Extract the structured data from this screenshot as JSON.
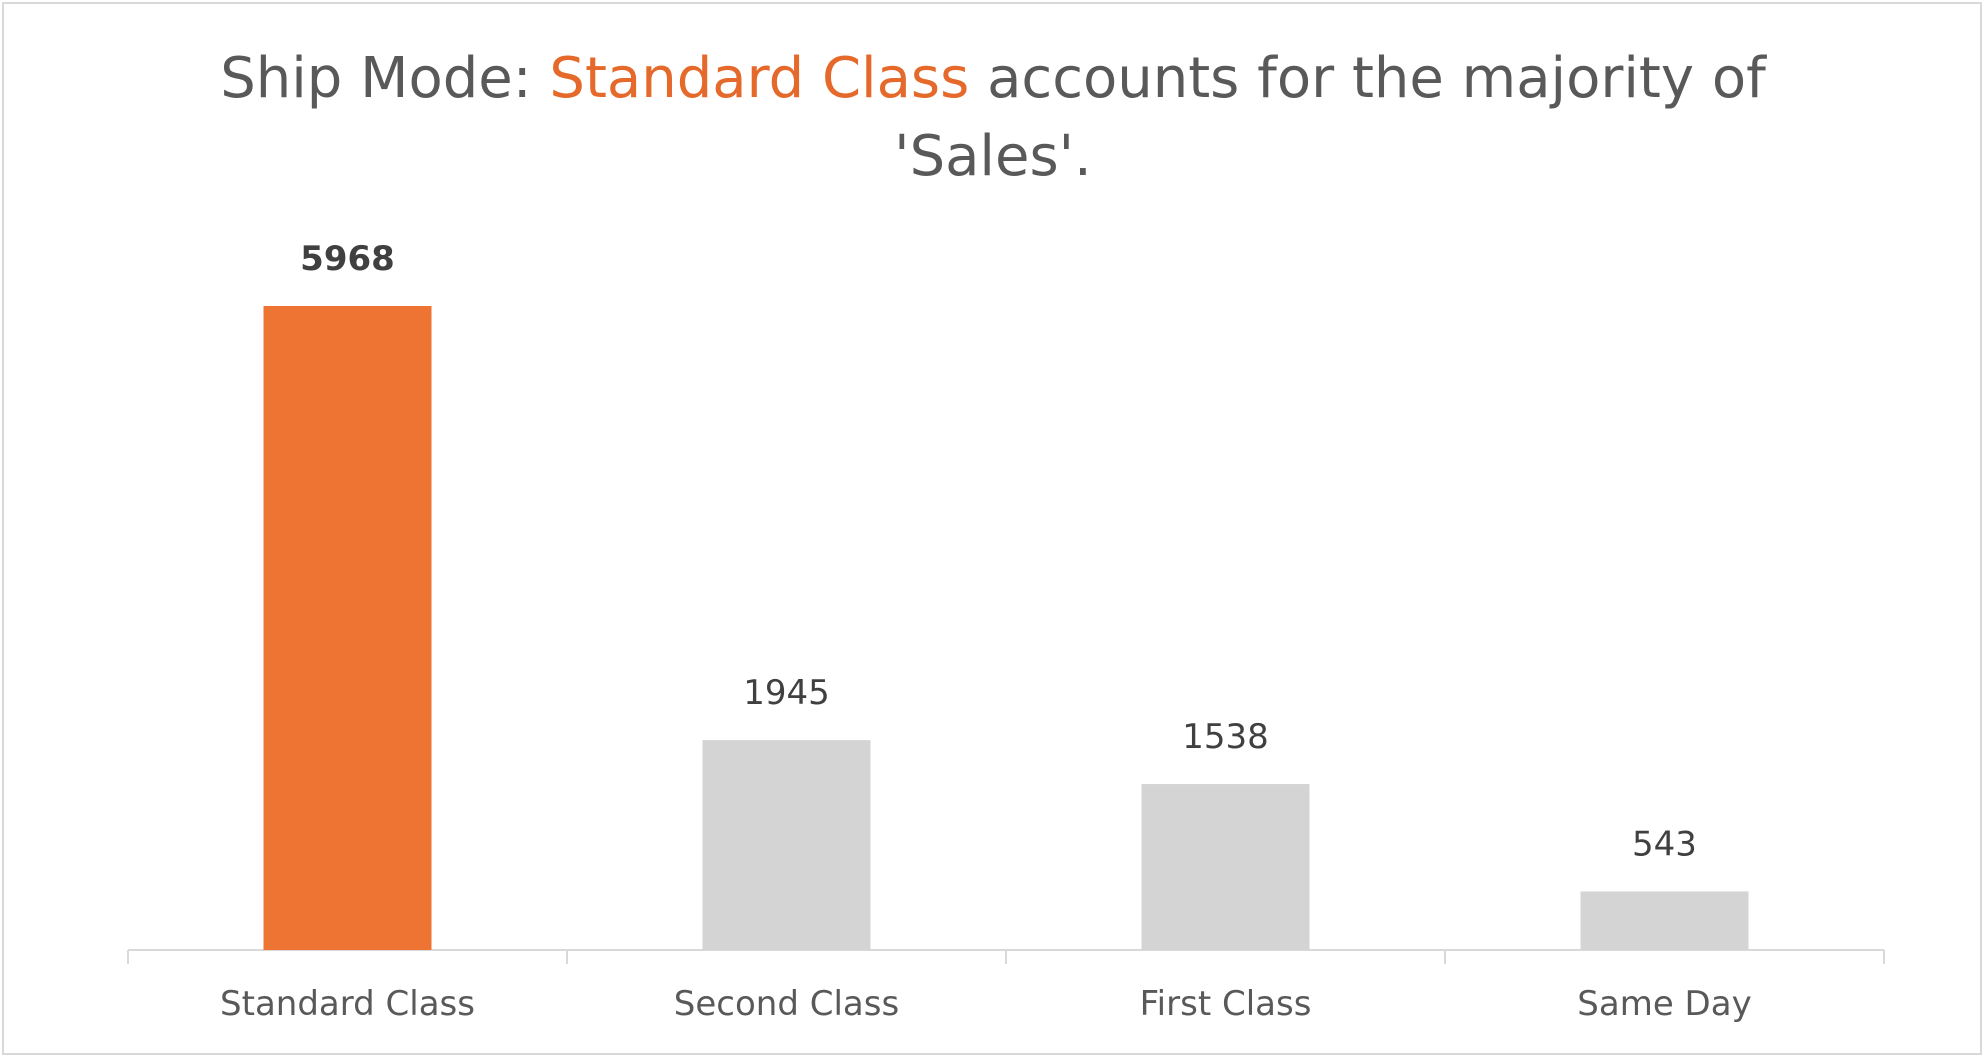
{
  "chart_data": {
    "type": "bar",
    "title_parts": [
      {
        "text": "Ship Mode: ",
        "highlight": false
      },
      {
        "text": "Standard Class",
        "highlight": true
      },
      {
        "text": " accounts for the majority of",
        "highlight": false
      },
      {
        "text": "'Sales'.",
        "highlight": false,
        "line_break_before": true
      }
    ],
    "categories": [
      "Standard Class",
      "Second Class",
      "First Class",
      "Same Day"
    ],
    "values": [
      5968,
      1945,
      1538,
      543
    ],
    "highlight_index": 0,
    "colors": {
      "highlight": "#ed7432",
      "default": "#d4d4d4",
      "title_highlight": "#e5692a",
      "text": "#595959",
      "label": "#404040",
      "axis": "#d9d9d9"
    },
    "ylim": [
      0,
      5968
    ],
    "grid": false,
    "legend": "none",
    "xlabel": "",
    "ylabel": ""
  }
}
